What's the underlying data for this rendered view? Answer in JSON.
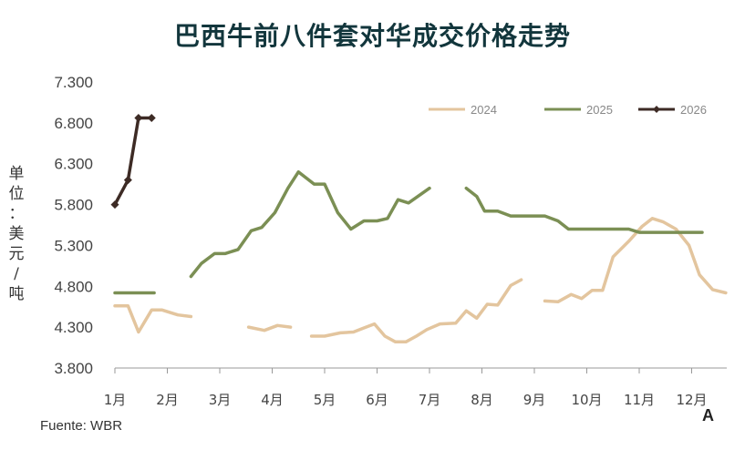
{
  "title": "巴西牛前八件套对华成交价格走势",
  "unit_label": [
    "单",
    "位",
    "：",
    "美",
    "元",
    "/",
    "吨"
  ],
  "source": "Fuente: WBR",
  "corner_mark": "A",
  "chart_data": {
    "type": "line",
    "title": "巴西牛前八件套对华成交价格走势",
    "xlabel": "",
    "ylabel": "单位：美元/吨",
    "ylim": [
      3800,
      7300
    ],
    "xlim": [
      0,
      12.2
    ],
    "yticks": [
      "7.300",
      "6.800",
      "6.300",
      "5.800",
      "5.300",
      "4.800",
      "4.300",
      "3.800"
    ],
    "ytick_values": [
      7300,
      6800,
      6300,
      5800,
      5300,
      4800,
      4300,
      3800
    ],
    "categories": [
      "1月",
      "2月",
      "3月",
      "4月",
      "5月",
      "6月",
      "7月",
      "8月",
      "9月",
      "10月",
      "11月",
      "12月"
    ],
    "legend_position": "top-right",
    "series": [
      {
        "name": "2024",
        "color": "#e3c59e",
        "width": 3.5,
        "markers": false,
        "segments": [
          [
            [
              0.0,
              4560
            ],
            [
              0.25,
              4560
            ],
            [
              0.45,
              4240
            ],
            [
              0.7,
              4510
            ],
            [
              0.9,
              4510
            ],
            [
              1.2,
              4450
            ],
            [
              1.45,
              4430
            ]
          ],
          [
            [
              2.55,
              4300
            ],
            [
              2.85,
              4260
            ],
            [
              3.1,
              4320
            ],
            [
              3.35,
              4300
            ]
          ],
          [
            [
              3.75,
              4190
            ],
            [
              4.0,
              4190
            ],
            [
              4.3,
              4230
            ],
            [
              4.55,
              4240
            ],
            [
              4.75,
              4290
            ],
            [
              4.95,
              4340
            ],
            [
              5.15,
              4190
            ],
            [
              5.35,
              4120
            ],
            [
              5.55,
              4120
            ],
            [
              5.75,
              4190
            ],
            [
              5.95,
              4270
            ],
            [
              6.2,
              4340
            ],
            [
              6.5,
              4350
            ],
            [
              6.7,
              4500
            ],
            [
              6.9,
              4410
            ],
            [
              7.1,
              4580
            ],
            [
              7.3,
              4570
            ],
            [
              7.55,
              4810
            ],
            [
              7.75,
              4880
            ]
          ],
          [
            [
              8.2,
              4620
            ],
            [
              8.45,
              4610
            ],
            [
              8.7,
              4700
            ],
            [
              8.9,
              4650
            ],
            [
              9.1,
              4750
            ],
            [
              9.3,
              4750
            ],
            [
              9.5,
              5160
            ],
            [
              9.8,
              5350
            ],
            [
              10.05,
              5530
            ],
            [
              10.25,
              5630
            ],
            [
              10.45,
              5590
            ],
            [
              10.7,
              5500
            ],
            [
              10.95,
              5300
            ],
            [
              11.15,
              4940
            ],
            [
              11.4,
              4760
            ],
            [
              11.65,
              4720
            ]
          ]
        ]
      },
      {
        "name": "2025",
        "color": "#7b8f54",
        "width": 3.5,
        "markers": false,
        "segments": [
          [
            [
              0.0,
              4720
            ],
            [
              0.75,
              4720
            ]
          ],
          [
            [
              1.45,
              4920
            ],
            [
              1.65,
              5080
            ],
            [
              1.9,
              5200
            ],
            [
              2.1,
              5200
            ],
            [
              2.35,
              5250
            ],
            [
              2.6,
              5480
            ],
            [
              2.8,
              5520
            ],
            [
              3.05,
              5700
            ],
            [
              3.3,
              6000
            ],
            [
              3.5,
              6200
            ],
            [
              3.8,
              6050
            ],
            [
              4.0,
              6050
            ],
            [
              4.25,
              5700
            ],
            [
              4.5,
              5500
            ],
            [
              4.75,
              5600
            ],
            [
              5.0,
              5600
            ],
            [
              5.2,
              5630
            ],
            [
              5.4,
              5860
            ],
            [
              5.6,
              5820
            ],
            [
              6.0,
              6000
            ]
          ],
          [
            [
              6.7,
              6000
            ],
            [
              6.9,
              5900
            ],
            [
              7.05,
              5720
            ],
            [
              7.3,
              5720
            ],
            [
              7.55,
              5660
            ],
            [
              8.2,
              5660
            ],
            [
              8.45,
              5600
            ],
            [
              8.65,
              5500
            ],
            [
              9.8,
              5500
            ],
            [
              10.0,
              5460
            ],
            [
              11.2,
              5460
            ]
          ]
        ]
      },
      {
        "name": "2026",
        "color": "#3d2b25",
        "width": 3.5,
        "markers": true,
        "segments": [
          [
            [
              0.0,
              5800
            ],
            [
              0.25,
              6100
            ],
            [
              0.45,
              6860
            ],
            [
              0.7,
              6860
            ]
          ]
        ]
      }
    ]
  }
}
